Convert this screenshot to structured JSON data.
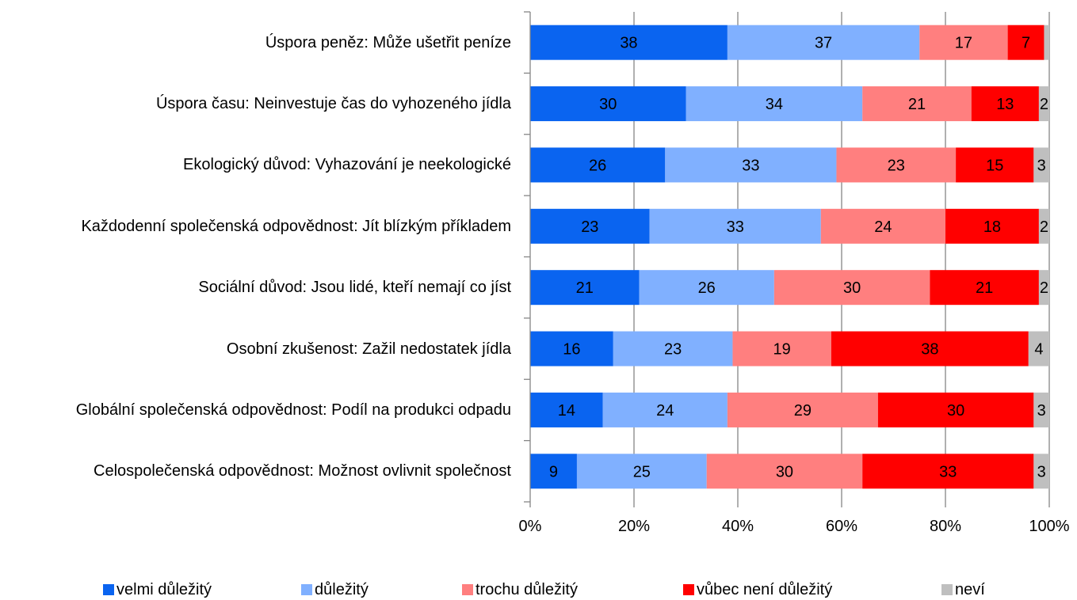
{
  "chart_data": {
    "type": "stacked_bar_horizontal",
    "categories": [
      "Úspora peněz: Může ušetřit peníze",
      "Úspora času: Neinvestuje čas do vyhozeného jídla",
      "Ekologický důvod: Vyhazování je neekologické",
      "Každodenní společenská odpovědnost: Jít blízkým příkladem",
      "Sociální důvod: Jsou lidé, kteří nemají co jíst",
      "Osobní zkušenost: Zažil nedostatek jídla",
      "Globální společenská odpovědnost: Podíl na produkci odpadu",
      "Celospolečenská odpovědnost: Možnost ovlivnit společnost"
    ],
    "series": [
      {
        "name": "velmi důležitý",
        "color": "#0a64f0",
        "values": [
          38,
          30,
          26,
          23,
          21,
          16,
          14,
          9
        ]
      },
      {
        "name": "důležitý",
        "color": "#80b0ff",
        "values": [
          37,
          34,
          33,
          33,
          26,
          23,
          24,
          25
        ]
      },
      {
        "name": "trochu důležitý",
        "color": "#ff7f7f",
        "values": [
          17,
          21,
          23,
          24,
          30,
          19,
          29,
          30
        ]
      },
      {
        "name": "vůbec není důležitý",
        "color": "#ff0000",
        "values": [
          7,
          13,
          15,
          18,
          21,
          38,
          30,
          33
        ]
      },
      {
        "name": "neví",
        "color": "#bfbfbf",
        "values": [
          1,
          2,
          3,
          2,
          2,
          4,
          3,
          3
        ]
      }
    ],
    "xlim": [
      0,
      100
    ],
    "xticks": [
      {
        "value": 0,
        "label": "0%"
      },
      {
        "value": 20,
        "label": "20%"
      },
      {
        "value": 40,
        "label": "40%"
      },
      {
        "value": 60,
        "label": "60%"
      },
      {
        "value": 80,
        "label": "80%"
      },
      {
        "value": 100,
        "label": "100%"
      }
    ],
    "grid": true,
    "legend": "bottom"
  }
}
